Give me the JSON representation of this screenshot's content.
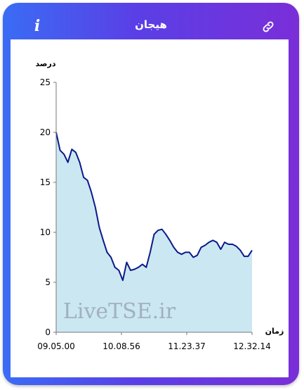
{
  "header": {
    "title": "هیجان"
  },
  "colors": {
    "line": "#0a1a8a",
    "fill": "#cbe7f1",
    "frame_start": "#3a6cf5",
    "frame_end": "#7a2ed8"
  },
  "icons": {
    "info": "info-icon",
    "link": "link-icon"
  },
  "watermark": "LiveTSE.ir",
  "chart_data": {
    "type": "area",
    "ylabel": "درصد",
    "xlabel": "زمان",
    "ylim": [
      0,
      25
    ],
    "yticks": [
      "0",
      "5",
      "10",
      "15",
      "20",
      "25"
    ],
    "xticks": [
      "09.05.00",
      "10.08.56",
      "11.23.37",
      "12.32.14"
    ],
    "x": [
      0,
      0.02,
      0.04,
      0.06,
      0.08,
      0.1,
      0.12,
      0.14,
      0.16,
      0.18,
      0.2,
      0.22,
      0.24,
      0.26,
      0.28,
      0.3,
      0.32,
      0.34,
      0.36,
      0.38,
      0.4,
      0.42,
      0.44,
      0.46,
      0.48,
      0.5,
      0.52,
      0.54,
      0.56,
      0.58,
      0.6,
      0.62,
      0.64,
      0.66,
      0.68,
      0.7,
      0.72,
      0.74,
      0.76,
      0.78,
      0.8,
      0.82,
      0.84,
      0.86,
      0.88,
      0.9,
      0.92,
      0.94,
      0.96,
      0.98,
      1.0
    ],
    "values": [
      20.0,
      18.2,
      17.8,
      17.0,
      18.3,
      18.0,
      17.0,
      15.5,
      15.2,
      14.0,
      12.5,
      10.5,
      9.2,
      8.0,
      7.5,
      6.5,
      6.2,
      5.2,
      7.0,
      6.2,
      6.3,
      6.5,
      6.8,
      6.5,
      8.0,
      9.8,
      10.2,
      10.3,
      9.8,
      9.2,
      8.5,
      8.0,
      7.8,
      8.0,
      8.0,
      7.5,
      7.7,
      8.5,
      8.7,
      9.0,
      9.2,
      9.0,
      8.3,
      9.0,
      8.8,
      8.8,
      8.6,
      8.2,
      7.6,
      7.6,
      8.2
    ]
  }
}
